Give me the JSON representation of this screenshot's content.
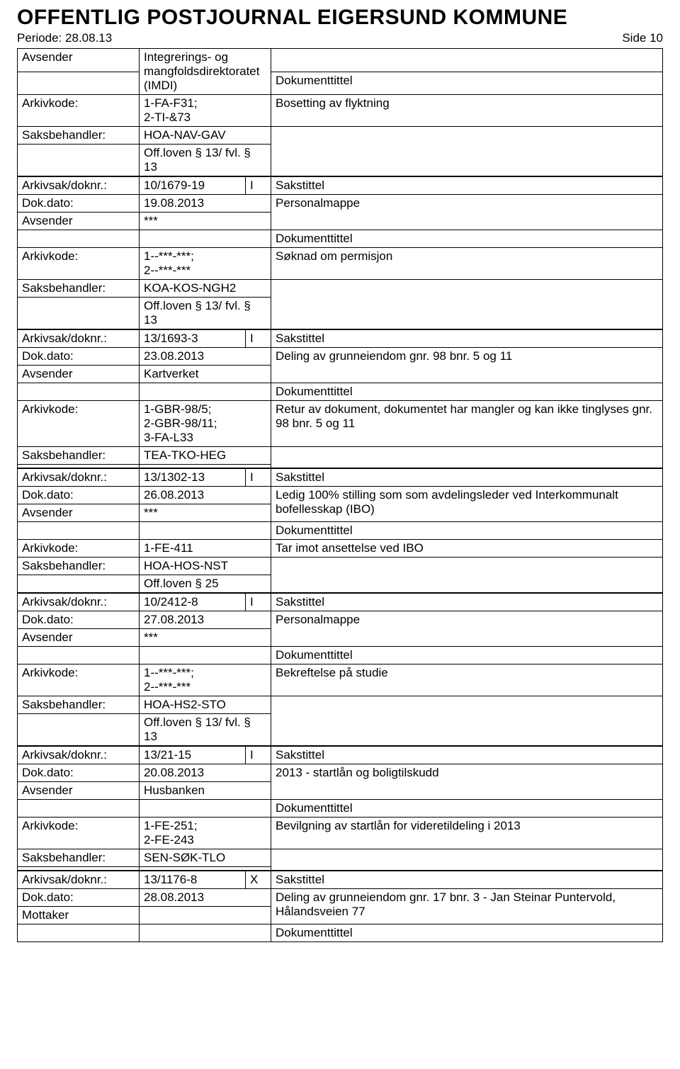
{
  "header": {
    "title": "OFFENTLIG POSTJOURNAL EIGERSUND KOMMUNE",
    "period_label": "Periode: 28.08.13",
    "side_label": "Side 10"
  },
  "labels": {
    "avsender": "Avsender",
    "mottaker": "Mottaker",
    "arkivkode": "Arkivkode:",
    "saksbehandler": "Saksbehandler:",
    "arkivsak": "Arkivsak/doknr.:",
    "dokdato": "Dok.dato:",
    "dokumenttittel": "Dokumenttittel",
    "sakstittel": "Sakstittel"
  },
  "rec0": {
    "avsender": "Integrerings- og mangfoldsdirektoratet (IMDI)",
    "arkivkode": "1-FA-F31;\n2-TI-&73",
    "doktittel": "Bosetting av flyktning",
    "saksbeh": "HOA-NAV-GAV",
    "offloven": "Off.loven § 13/ fvl. § 13"
  },
  "rec1": {
    "arkivsak": "10/1679-19",
    "io": "I",
    "dokdato": "19.08.2013",
    "sakstittel": "Personalmappe",
    "avsender": "***",
    "arkivkode": "1--***-***;\n2--***-***",
    "doktittel": "Søknad om permisjon",
    "saksbeh": "KOA-KOS-NGH2",
    "offloven": "Off.loven § 13/ fvl. § 13"
  },
  "rec2": {
    "arkivsak": "13/1693-3",
    "io": "I",
    "dokdato": "23.08.2013",
    "sakstittel": "Deling av grunneiendom gnr. 98 bnr. 5 og 11",
    "avsender": "Kartverket",
    "arkivkode": "1-GBR-98/5;\n2-GBR-98/11;\n3-FA-L33",
    "doktittel": "Retur av dokument, dokumentet har mangler og kan ikke tinglyses gnr. 98 bnr. 5 og 11",
    "saksbeh": "TEA-TKO-HEG"
  },
  "rec3": {
    "arkivsak": "13/1302-13",
    "io": "I",
    "dokdato": "26.08.2013",
    "sakstittel": "Ledig 100% stilling som som avdelingsleder ved Interkommunalt bofellesskap (IBO)",
    "avsender": "***",
    "arkivkode": "1-FE-411",
    "doktittel": "Tar imot ansettelse ved IBO",
    "saksbeh": "HOA-HOS-NST",
    "offloven": "Off.loven § 25"
  },
  "rec4": {
    "arkivsak": "10/2412-8",
    "io": "I",
    "dokdato": "27.08.2013",
    "sakstittel": "Personalmappe",
    "avsender": "***",
    "arkivkode": "1--***-***;\n2--***-***",
    "doktittel": "Bekreftelse på studie",
    "saksbeh": "HOA-HS2-STO",
    "offloven": "Off.loven § 13/ fvl. § 13"
  },
  "rec5": {
    "arkivsak": "13/21-15",
    "io": "I",
    "dokdato": "20.08.2013",
    "sakstittel": "2013 - startlån og boligtilskudd",
    "avsender": "Husbanken",
    "arkivkode": "1-FE-251;\n2-FE-243",
    "doktittel": "Bevilgning av startlån for videretildeling i 2013",
    "saksbeh": "SEN-SØK-TLO"
  },
  "rec6": {
    "arkivsak": "13/1176-8",
    "io": "X",
    "dokdato": "28.08.2013",
    "sakstittel": "Deling av grunneiendom gnr. 17 bnr. 3 - Jan Steinar Puntervold, Hålandsveien 77",
    "mottaker": ""
  }
}
